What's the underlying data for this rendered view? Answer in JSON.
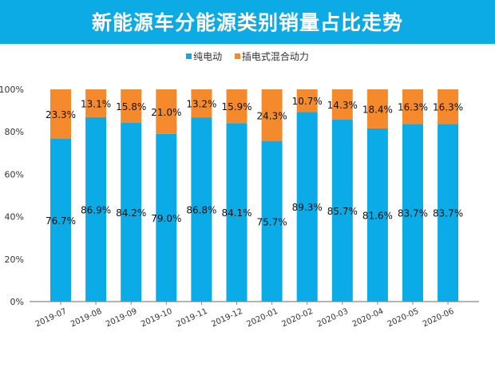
{
  "chart_data": {
    "type": "bar",
    "stacked": true,
    "title": "新能源车分能源类别销量占比走势",
    "categories": [
      "2019-07",
      "2019-08",
      "2019-09",
      "2019-10",
      "2019-11",
      "2019-12",
      "2020-01",
      "2020-02",
      "2020-03",
      "2020-04",
      "2020-05",
      "2020-06"
    ],
    "series": [
      {
        "name": "纯电动",
        "color": "#0aabe6",
        "values": [
          76.7,
          86.9,
          84.2,
          79.0,
          86.8,
          84.1,
          75.7,
          89.3,
          85.7,
          81.6,
          83.7,
          83.7
        ]
      },
      {
        "name": "插电式混合动力",
        "color": "#f58a2c",
        "values": [
          23.3,
          13.1,
          15.8,
          21.0,
          13.2,
          15.9,
          24.3,
          10.7,
          14.3,
          18.4,
          16.3,
          16.3
        ]
      }
    ],
    "yticks": [
      "0%",
      "20%",
      "40%",
      "60%",
      "80%",
      "100%"
    ],
    "ylim": [
      0,
      100
    ],
    "legend": "top",
    "grid": false
  }
}
